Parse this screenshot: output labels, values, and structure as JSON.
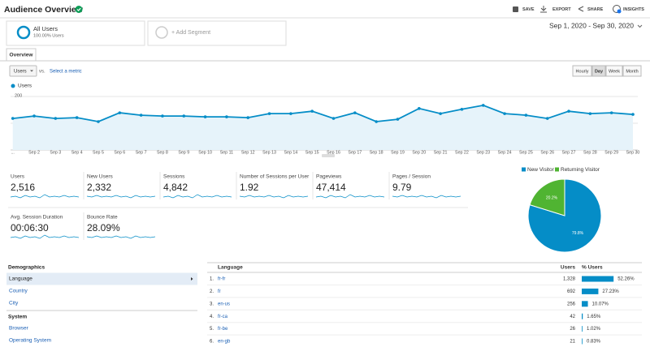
{
  "header": {
    "title": "Audience Overview",
    "actions": [
      "SAVE",
      "EXPORT",
      "SHARE",
      "INSIGHTS"
    ]
  },
  "segments": {
    "active": "All Users",
    "active_sub": "100.00% Users",
    "add": "+ Add Segment"
  },
  "date_range": "Sep 1, 2020 - Sep 30, 2020",
  "tab": "Overview",
  "controls": {
    "metric": "Users",
    "vs": "vs.",
    "select": "Select a metric",
    "granularity": [
      "Hourly",
      "Day",
      "Week",
      "Month"
    ],
    "selected": "Day"
  },
  "chart_data": [
    {
      "type": "line",
      "categories": [
        "...",
        "Sep 2",
        "Sep 3",
        "Sep 4",
        "Sep 5",
        "Sep 6",
        "Sep 7",
        "Sep 8",
        "Sep 9",
        "Sep 10",
        "Sep 11",
        "Sep 12",
        "Sep 13",
        "Sep 14",
        "Sep 15",
        "Sep 16",
        "Sep 17",
        "Sep 18",
        "Sep 19",
        "Sep 20",
        "Sep 21",
        "Sep 22",
        "Sep 23",
        "Sep 24",
        "Sep 25",
        "Sep 26",
        "Sep 27",
        "Sep 28",
        "Sep 29",
        "Sep 30"
      ],
      "series": [
        {
          "name": "Users",
          "color": "#058dc7",
          "values": [
            118,
            127,
            118,
            121,
            106,
            139,
            130,
            127,
            127,
            124,
            124,
            121,
            136,
            136,
            145,
            118,
            139,
            106,
            115,
            155,
            136,
            152,
            167,
            136,
            130,
            118,
            145,
            136,
            139,
            133
          ]
        }
      ],
      "ylim": [
        0,
        200
      ],
      "yticks": [
        100,
        200
      ],
      "grid": true
    },
    {
      "type": "pie",
      "categories": [
        "New Visitor",
        "Returning Visitor"
      ],
      "values": [
        79.8,
        20.2
      ],
      "value_labels": [
        "79.8%",
        "20.2%"
      ],
      "colors": [
        "#058dc7",
        "#50b432"
      ],
      "legend": "top"
    }
  ],
  "metrics": [
    {
      "label": "Users",
      "value": "2,516"
    },
    {
      "label": "New Users",
      "value": "2,332"
    },
    {
      "label": "Sessions",
      "value": "4,842"
    },
    {
      "label": "Number of Sessions per User",
      "value": "1.92"
    },
    {
      "label": "Pageviews",
      "value": "47,414"
    },
    {
      "label": "Pages / Session",
      "value": "9.79"
    },
    {
      "label": "Avg. Session Duration",
      "value": "00:06:30"
    },
    {
      "label": "Bounce Rate",
      "value": "28.09%"
    }
  ],
  "sidebar": {
    "sections": [
      {
        "title": "Demographics",
        "items": [
          "Language",
          "Country",
          "City"
        ]
      },
      {
        "title": "System",
        "items": [
          "Browser",
          "Operating System"
        ]
      }
    ]
  },
  "table": {
    "headers": [
      "Language",
      "Users",
      "% Users"
    ],
    "rows": [
      {
        "rank": "1.",
        "language": "fr-fr",
        "users": "1,328",
        "pct": 52.26,
        "pct_label": "52.26%"
      },
      {
        "rank": "2.",
        "language": "fr",
        "users": "692",
        "pct": 27.23,
        "pct_label": "27.23%"
      },
      {
        "rank": "3.",
        "language": "en-us",
        "users": "256",
        "pct": 10.07,
        "pct_label": "10.07%"
      },
      {
        "rank": "4.",
        "language": "fr-ca",
        "users": "42",
        "pct": 1.65,
        "pct_label": "1.65%"
      },
      {
        "rank": "5.",
        "language": "fr-be",
        "users": "26",
        "pct": 1.02,
        "pct_label": "1.02%"
      },
      {
        "rank": "6.",
        "language": "en-gb",
        "users": "21",
        "pct": 0.83,
        "pct_label": "0.83%"
      }
    ]
  }
}
